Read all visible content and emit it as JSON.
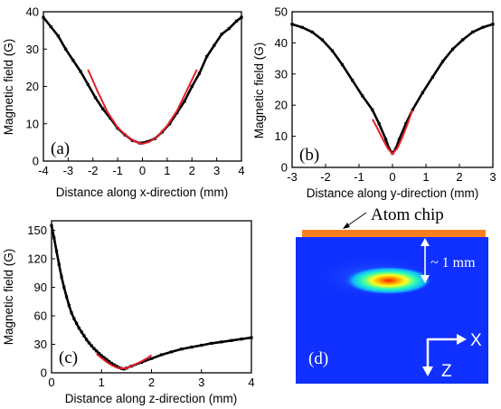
{
  "chart_data": [
    {
      "type": "scatter",
      "panel_label": "(a)",
      "xlabel": "Distance along x-direction (mm)",
      "ylabel": "Magnetic field (G)",
      "xlim": [
        -4,
        4
      ],
      "ylim": [
        0,
        40
      ],
      "xticks": [
        -4,
        -3,
        -2,
        -1,
        0,
        1,
        2,
        3,
        4
      ],
      "yticks": [
        0,
        10,
        20,
        30,
        40
      ],
      "colors": {
        "data": "#000000",
        "fit": "#e8202a"
      },
      "series": [
        {
          "kind": "data",
          "x": [
            -4,
            -3.7,
            -3.4,
            -3.1,
            -2.8,
            -2.5,
            -2.2,
            -1.9,
            -1.6,
            -1.3,
            -1.0,
            -0.7,
            -0.4,
            -0.1,
            0.2,
            0.5,
            0.8,
            1.1,
            1.4,
            1.7,
            2.0,
            2.3,
            2.6,
            2.9,
            3.2,
            3.5,
            3.8,
            4.0
          ],
          "y": [
            38.5,
            36,
            33.5,
            30,
            27,
            24,
            20.5,
            17,
            14,
            11.5,
            8.8,
            7,
            5.5,
            4.8,
            5.2,
            6,
            7.8,
            10,
            13,
            16,
            20,
            23.5,
            28,
            31,
            34,
            35.5,
            37.5,
            38.5
          ]
        },
        {
          "kind": "fit",
          "x": [
            -2.2,
            -1.8,
            -1.4,
            -1.0,
            -0.6,
            -0.3,
            0,
            0.3,
            0.6,
            1.0,
            1.4,
            1.8,
            2.2
          ],
          "y": [
            24.5,
            18.5,
            13,
            9,
            6.5,
            5.2,
            4.6,
            5.2,
            6.5,
            9.5,
            13.5,
            19,
            24.5
          ]
        }
      ]
    },
    {
      "type": "scatter",
      "panel_label": "(b)",
      "xlabel": "Distance along y-direction (mm)",
      "ylabel": "Magnetic field (G)",
      "xlim": [
        -3,
        3
      ],
      "ylim": [
        0,
        50
      ],
      "xticks": [
        -3,
        -2,
        -1,
        0,
        1,
        2,
        3
      ],
      "yticks": [
        0,
        10,
        20,
        30,
        40,
        50
      ],
      "colors": {
        "data": "#000000",
        "fit": "#e8202a"
      },
      "series": [
        {
          "kind": "data",
          "x": [
            -3,
            -2.7,
            -2.4,
            -2.1,
            -1.8,
            -1.5,
            -1.2,
            -0.9,
            -0.6,
            -0.4,
            -0.2,
            -0.1,
            0,
            0.1,
            0.2,
            0.4,
            0.6,
            0.9,
            1.2,
            1.5,
            1.8,
            2.1,
            2.4,
            2.7,
            3.0
          ],
          "y": [
            46,
            45,
            43.5,
            41,
            37.5,
            33,
            28,
            23,
            18.5,
            14,
            9,
            6,
            4.5,
            6,
            9,
            14,
            18.5,
            24,
            29,
            34,
            38,
            41,
            43.5,
            45,
            46
          ]
        },
        {
          "kind": "fit",
          "x": [
            -0.6,
            -0.45,
            -0.3,
            -0.15,
            0,
            0.15,
            0.3,
            0.45,
            0.6
          ],
          "y": [
            15.5,
            12.5,
            9.3,
            6.3,
            4.3,
            6.3,
            9.8,
            14,
            18.5
          ]
        }
      ]
    },
    {
      "type": "scatter",
      "panel_label": "(c)",
      "xlabel": "Distance along z-direction (mm)",
      "ylabel": "Magnetic field (G)",
      "xlim": [
        0,
        4
      ],
      "ylim": [
        0,
        160
      ],
      "xticks": [
        0,
        1,
        2,
        3,
        4
      ],
      "yticks": [
        0,
        30,
        60,
        90,
        120,
        150
      ],
      "colors": {
        "data": "#000000",
        "fit": "#e8202a"
      },
      "series": [
        {
          "kind": "data",
          "x": [
            0.0,
            0.05,
            0.1,
            0.15,
            0.2,
            0.25,
            0.3,
            0.35,
            0.4,
            0.45,
            0.5,
            0.55,
            0.6,
            0.65,
            0.7,
            0.75,
            0.8,
            0.85,
            0.9,
            0.95,
            1.0,
            1.05,
            1.1,
            1.15,
            1.2,
            1.25,
            1.3,
            1.35,
            1.4,
            1.45,
            1.5,
            1.6,
            1.8,
            2.0,
            2.2,
            2.4,
            2.6,
            2.8,
            3.0,
            3.2,
            3.4,
            3.6,
            3.8,
            4.0
          ],
          "y": [
            155,
            142,
            128,
            114,
            101,
            90,
            80,
            71,
            63,
            57,
            52,
            47,
            43,
            39,
            35,
            31.5,
            28.5,
            25.5,
            23,
            20.5,
            18,
            16,
            14,
            12,
            10,
            8.5,
            7,
            5.5,
            4.5,
            4,
            5,
            7,
            11,
            15,
            19,
            22,
            25,
            27,
            29,
            31,
            32.5,
            34,
            35.5,
            37
          ]
        },
        {
          "kind": "fit",
          "x": [
            0.9,
            1.0,
            1.1,
            1.2,
            1.3,
            1.4,
            1.5,
            1.6,
            1.7,
            1.8,
            1.9,
            2.0
          ],
          "y": [
            20,
            15.5,
            11.5,
            8,
            5.5,
            4.5,
            5,
            7,
            9.5,
            12,
            15,
            18.5
          ]
        }
      ]
    }
  ],
  "panel_d": {
    "panel_label": "(d)",
    "chip_label": "Atom chip",
    "distance_label": "~ 1 mm",
    "axis_x_label": "X",
    "axis_z_label": "Z",
    "colors": {
      "chip": "#ff7f1e",
      "background": "#1030ff",
      "cloud_core": "#ff1a00",
      "arrows": "#ffffff"
    }
  }
}
